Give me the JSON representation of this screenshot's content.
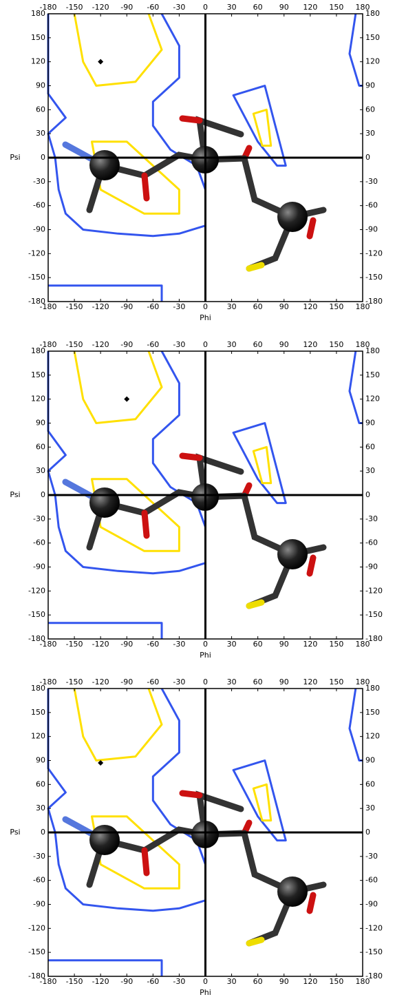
{
  "chart_data": [
    {
      "type": "scatter",
      "x_label": "Phi",
      "y_label": "Psi",
      "x": [
        -120
      ],
      "y": [
        120
      ],
      "color": "#000000",
      "xlim": [
        -180,
        180
      ],
      "ylim": [
        -180,
        180
      ],
      "xticks": [
        -180,
        -150,
        -120,
        -90,
        -60,
        -30,
        0,
        30,
        60,
        90,
        120,
        150,
        180
      ],
      "yticks": [
        -180,
        -150,
        -120,
        -90,
        -60,
        -30,
        0,
        30,
        60,
        90,
        120,
        150,
        180
      ]
    },
    {
      "type": "scatter",
      "x_label": "Phi",
      "y_label": "Psi",
      "x": [
        -90
      ],
      "y": [
        120
      ],
      "color": "#000000",
      "xlim": [
        -180,
        180
      ],
      "ylim": [
        -180,
        180
      ],
      "xticks": [
        -180,
        -150,
        -120,
        -90,
        -60,
        -30,
        0,
        30,
        60,
        90,
        120,
        150,
        180
      ],
      "yticks": [
        -180,
        -150,
        -120,
        -90,
        -60,
        -30,
        0,
        30,
        60,
        90,
        120,
        150,
        180
      ]
    },
    {
      "type": "scatter",
      "x_label": "Phi",
      "y_label": "Psi",
      "x": [
        -120
      ],
      "y": [
        87
      ],
      "color": "#000000",
      "xlim": [
        -180,
        180
      ],
      "ylim": [
        -180,
        180
      ],
      "xticks": [
        -180,
        -150,
        -120,
        -90,
        -60,
        -30,
        0,
        30,
        60,
        90,
        120,
        150,
        180
      ],
      "yticks": [
        -180,
        -150,
        -120,
        -90,
        -60,
        -30,
        0,
        30,
        60,
        90,
        120,
        150,
        180
      ]
    }
  ]
}
